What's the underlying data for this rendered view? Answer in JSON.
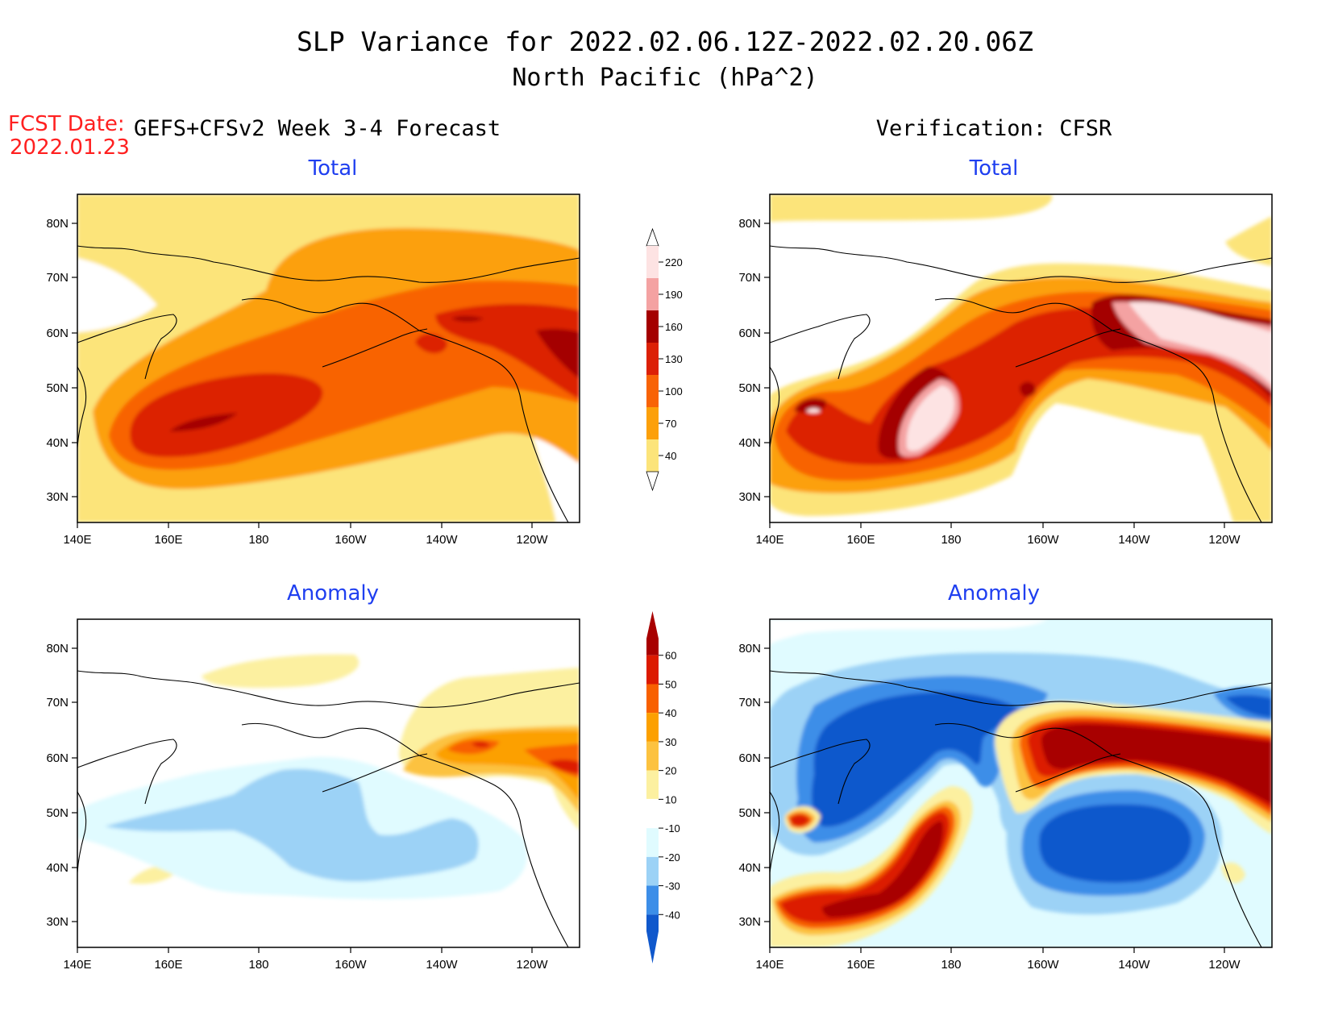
{
  "header": {
    "title_line1": "SLP Variance for 2022.02.06.12Z-2022.02.20.06Z",
    "title_line2": "North Pacific (hPa^2)",
    "fcst_label": "FCST Date:",
    "fcst_date": "2022.01.23",
    "left_column_title": "GEFS+CFSv2 Week 3-4 Forecast",
    "right_column_title": "Verification: CFSR"
  },
  "panels": [
    {
      "id": "forecast-total",
      "title": "Total"
    },
    {
      "id": "verification-total",
      "title": "Total"
    },
    {
      "id": "forecast-anomaly",
      "title": "Anomaly"
    },
    {
      "id": "verification-anomaly",
      "title": "Anomaly"
    }
  ],
  "axes": {
    "lon_ticks": [
      "140E",
      "160E",
      "180",
      "160W",
      "140W",
      "120W"
    ],
    "lat_ticks": [
      "80N",
      "70N",
      "60N",
      "50N",
      "40N",
      "30N"
    ]
  },
  "colorbars": {
    "total": {
      "levels": [
        "220",
        "190",
        "160",
        "130",
        "100",
        "70",
        "40"
      ],
      "colors": [
        "#fde3e3",
        "#f4a2a2",
        "#a40000",
        "#dc2006",
        "#f86306",
        "#fca00a",
        "#fce47a"
      ]
    },
    "anomaly": {
      "levels": [
        "60",
        "50",
        "40",
        "30",
        "20",
        "10",
        "-10",
        "-20",
        "-30",
        "-40"
      ],
      "colors": [
        "#a80000",
        "#dc1a00",
        "#f86000",
        "#fca000",
        "#fcc240",
        "#fcf0a0",
        "#ffffff",
        "#e0fbff",
        "#9cd2f6",
        "#3c8ee8",
        "#1058cc"
      ]
    }
  },
  "chart_data": [
    {
      "type": "heatmap",
      "title": "Total",
      "units": "hPa^2",
      "x_range": [
        "140E",
        "110W"
      ],
      "y_range": [
        "25N",
        "85N"
      ],
      "contour_levels": [
        40,
        70,
        100,
        130,
        160,
        190,
        220
      ],
      "features": [
        {
          "region": "central North Pacific",
          "value_range": [
            130,
            160
          ]
        },
        {
          "region": "near 160E-170E, 42N",
          "value_range": [
            160,
            190
          ]
        },
        {
          "region": "Gulf of Alaska / west of Canada",
          "value_range": [
            160,
            190
          ]
        }
      ]
    },
    {
      "type": "heatmap",
      "title": "Total",
      "units": "hPa^2",
      "x_range": [
        "140E",
        "110W"
      ],
      "y_range": [
        "25N",
        "85N"
      ],
      "contour_levels": [
        40,
        70,
        100,
        130,
        160,
        190,
        220
      ],
      "features": [
        {
          "region": "near 180, 45N",
          "value_range": [
            220,
            250
          ]
        },
        {
          "region": "western Canada 55-62N",
          "value_range": [
            220,
            250
          ]
        },
        {
          "region": "off Japan 45N",
          "value_range": [
            160,
            220
          ]
        }
      ]
    },
    {
      "type": "heatmap",
      "title": "Anomaly",
      "units": "hPa^2",
      "x_range": [
        "140E",
        "110W"
      ],
      "y_range": [
        "25N",
        "85N"
      ],
      "contour_levels": [
        -40,
        -30,
        -20,
        -10,
        10,
        20,
        30,
        40,
        50,
        60
      ],
      "features": [
        {
          "region": "Gulf of Alaska 60N 135W",
          "value_range": [
            40,
            50
          ]
        },
        {
          "region": "western Canada 57N 115W",
          "value_range": [
            40,
            50
          ]
        },
        {
          "region": "central North Pacific 40-50N",
          "value_range": [
            -30,
            -20
          ]
        }
      ]
    },
    {
      "type": "heatmap",
      "title": "Anomaly",
      "units": "hPa^2",
      "x_range": [
        "140E",
        "110W"
      ],
      "y_range": [
        "25N",
        "85N"
      ],
      "contour_levels": [
        -40,
        -30,
        -20,
        -10,
        10,
        20,
        30,
        40,
        50,
        60
      ],
      "features": [
        {
          "region": "NW Pacific / Bering 50-70N",
          "value_range": [
            -50,
            -40
          ]
        },
        {
          "region": "150W-120W 38-47N",
          "value_range": [
            -50,
            -40
          ]
        },
        {
          "region": "near 170E-180 30-48N",
          "value_range": [
            60,
            80
          ]
        },
        {
          "region": "Alaska / W Canada 55-65N",
          "value_range": [
            60,
            80
          ]
        }
      ]
    }
  ]
}
